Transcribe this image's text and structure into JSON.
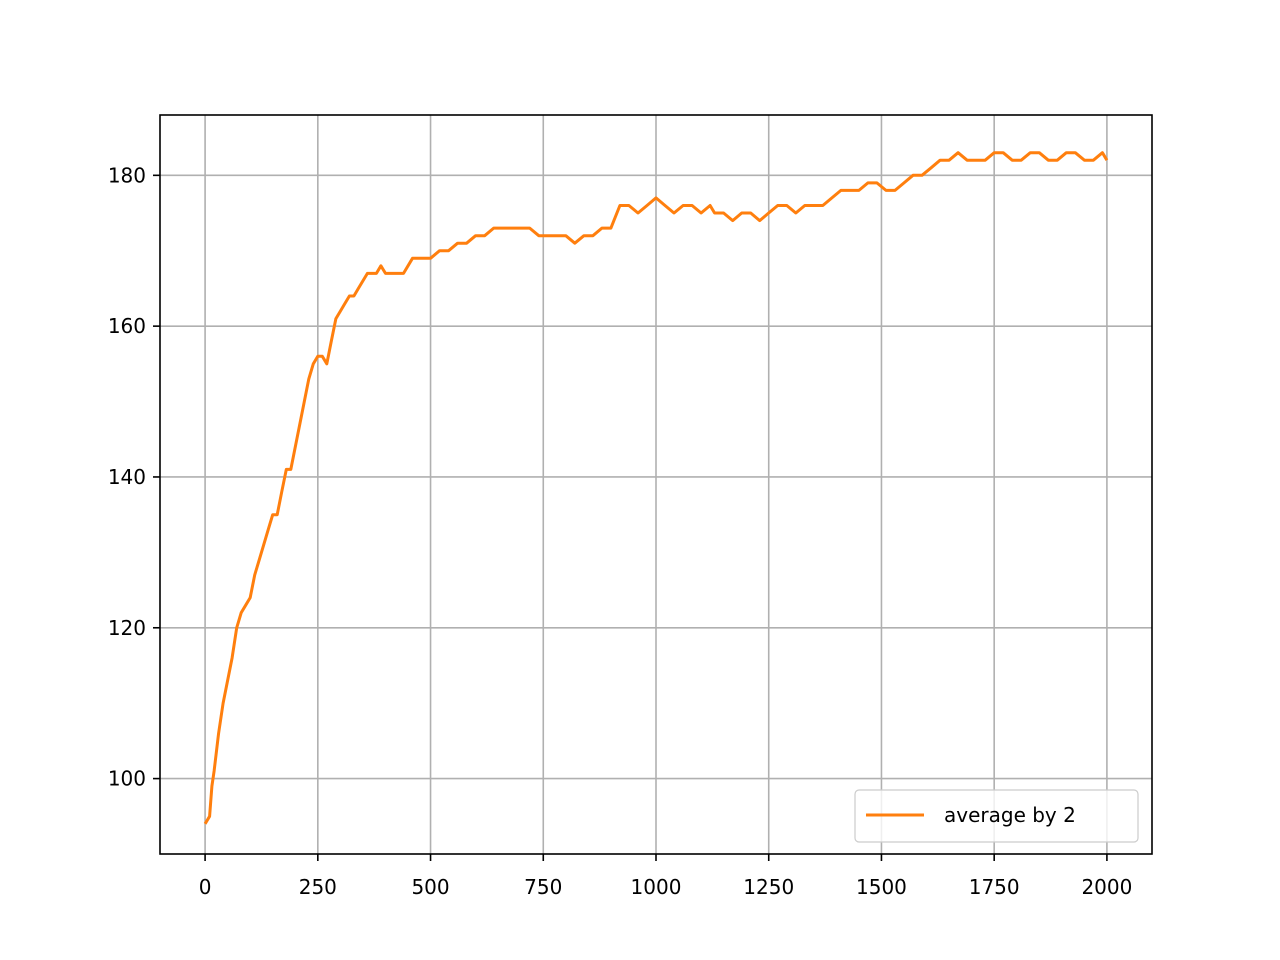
{
  "chart_data": {
    "type": "line",
    "title": "",
    "xlabel": "",
    "ylabel": "",
    "xlim": [
      -100,
      2100
    ],
    "ylim": [
      90,
      188
    ],
    "xticks": [
      0,
      250,
      500,
      750,
      1000,
      1250,
      1500,
      1750,
      2000
    ],
    "xtick_labels": [
      "0",
      "250",
      "500",
      "750",
      "1000",
      "1250",
      "1500",
      "1750",
      "2000"
    ],
    "yticks": [
      100,
      120,
      140,
      160,
      180
    ],
    "ytick_labels": [
      "100",
      "120",
      "140",
      "160",
      "180"
    ],
    "grid": true,
    "legend_position": "lower right",
    "series": [
      {
        "name": "average by 2",
        "color": "#ff7f0e",
        "x": [
          0,
          10,
          15,
          20,
          30,
          40,
          50,
          60,
          70,
          80,
          90,
          100,
          110,
          120,
          130,
          140,
          150,
          160,
          170,
          180,
          190,
          200,
          210,
          220,
          230,
          240,
          250,
          260,
          270,
          280,
          290,
          300,
          310,
          320,
          330,
          340,
          350,
          360,
          370,
          380,
          390,
          400,
          420,
          440,
          460,
          480,
          500,
          520,
          540,
          560,
          580,
          600,
          620,
          640,
          660,
          680,
          700,
          720,
          740,
          760,
          780,
          800,
          820,
          840,
          860,
          880,
          900,
          920,
          940,
          960,
          980,
          1000,
          1020,
          1040,
          1060,
          1080,
          1100,
          1120,
          1130,
          1150,
          1170,
          1190,
          1210,
          1230,
          1250,
          1270,
          1290,
          1310,
          1330,
          1350,
          1370,
          1390,
          1410,
          1430,
          1450,
          1470,
          1490,
          1510,
          1530,
          1550,
          1570,
          1590,
          1610,
          1630,
          1650,
          1670,
          1690,
          1710,
          1730,
          1750,
          1770,
          1790,
          1810,
          1830,
          1850,
          1870,
          1890,
          1910,
          1930,
          1950,
          1970,
          1990,
          2000
        ],
        "y": [
          94,
          95,
          99,
          101,
          106,
          110,
          113,
          116,
          120,
          122,
          123,
          124,
          127,
          129,
          131,
          133,
          135,
          135,
          138,
          141,
          141,
          144,
          147,
          150,
          153,
          155,
          156,
          156,
          155,
          158,
          161,
          162,
          163,
          164,
          164,
          165,
          166,
          167,
          167,
          167,
          168,
          167,
          167,
          167,
          169,
          169,
          169,
          170,
          170,
          171,
          171,
          172,
          172,
          173,
          173,
          173,
          173,
          173,
          172,
          172,
          172,
          172,
          171,
          172,
          172,
          173,
          173,
          176,
          176,
          175,
          176,
          177,
          176,
          175,
          176,
          176,
          175,
          176,
          175,
          175,
          174,
          175,
          175,
          174,
          175,
          176,
          176,
          175,
          176,
          176,
          176,
          177,
          178,
          178,
          178,
          179,
          179,
          178,
          178,
          179,
          180,
          180,
          181,
          182,
          182,
          183,
          182,
          182,
          182,
          183,
          183,
          182,
          182,
          183,
          183,
          182,
          182,
          183,
          183,
          182,
          182,
          183,
          182
        ]
      }
    ]
  }
}
